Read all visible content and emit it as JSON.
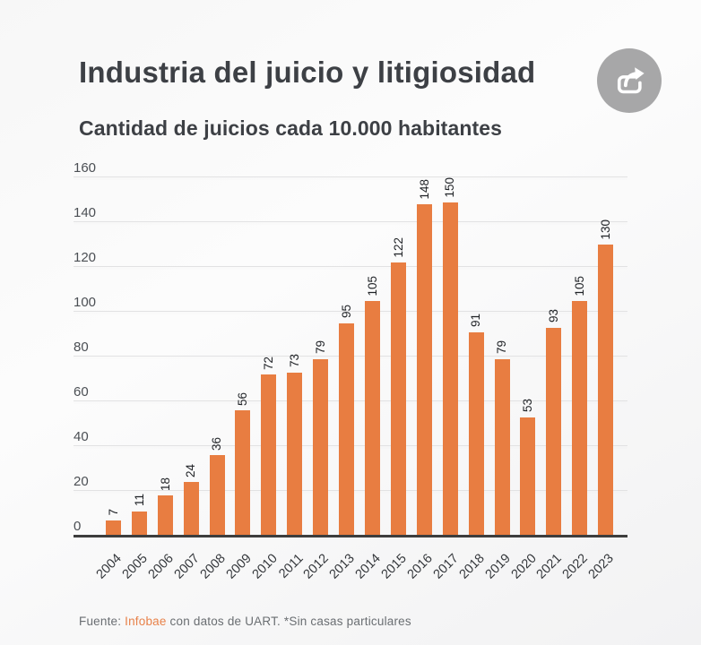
{
  "header": {
    "title": "Industria del juicio y litigiosidad",
    "subtitle": "Cantidad de juicios cada 10.000 habitantes"
  },
  "chart_data": {
    "type": "bar",
    "title": "Industria del juicio y litigiosidad",
    "subtitle": "Cantidad de juicios cada 10.000 habitantes",
    "categories": [
      "2004",
      "2005",
      "2006",
      "2007",
      "2008",
      "2009",
      "2010",
      "2011",
      "2012",
      "2013",
      "2014",
      "2015",
      "2016",
      "2017",
      "2018",
      "2019",
      "2020",
      "2021",
      "2022",
      "2023"
    ],
    "values": [
      7,
      11,
      18,
      24,
      36,
      56,
      72,
      73,
      79,
      95,
      105,
      122,
      148,
      150,
      91,
      79,
      53,
      93,
      105,
      130
    ],
    "xlabel": "",
    "ylabel": "",
    "ylim": [
      0,
      160
    ],
    "yticks": [
      0,
      20,
      40,
      60,
      80,
      100,
      120,
      140,
      160
    ],
    "grid": true,
    "value_labels": "rotated-vertical",
    "xtick_rotation": -45,
    "legend": "none"
  },
  "footer": {
    "prefix": "Fuente: ",
    "source": "Infobae",
    "suffix": " con datos de UART. *Sin casas particulares"
  },
  "icons": {
    "share": "share-arrow-icon"
  },
  "colors": {
    "bar": "#E87D41",
    "accent_text": "#E8824A",
    "title_text": "#3D4045",
    "grid_line": "#E2E2E3",
    "axis_line": "#3D3D3D",
    "share_button_bg": "#A7A7A8",
    "share_icon": "#FFFFFF"
  }
}
